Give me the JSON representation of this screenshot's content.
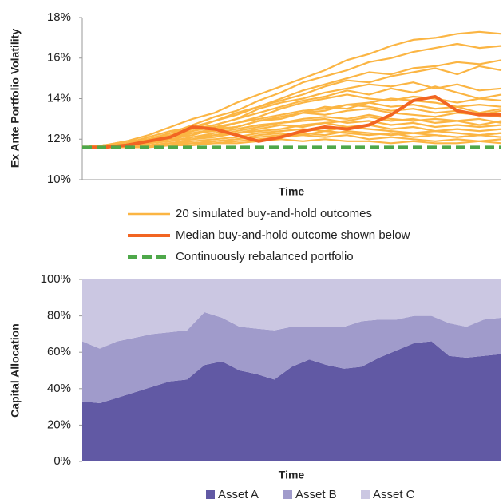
{
  "chart_data": [
    {
      "type": "line",
      "ylabel": "Ex Ante Portfolio Volatility",
      "xlabel": "Time",
      "ylim": [
        10,
        18
      ],
      "yticks": [
        {
          "value": 10,
          "label": "10%"
        },
        {
          "value": 12,
          "label": "12%"
        },
        {
          "value": 14,
          "label": "14%"
        },
        {
          "value": 16,
          "label": "16%"
        },
        {
          "value": 18,
          "label": "18%"
        }
      ],
      "series": [
        {
          "name": "20 simulated buy-and-hold outcomes",
          "color": "#fbb543",
          "values": [
            [
              11.6,
              11.7,
              11.9,
              12.2,
              12.6,
              13.0,
              13.3,
              13.8,
              14.2,
              14.6,
              15.0,
              15.4,
              15.9,
              16.2,
              16.6,
              16.9,
              17.0,
              17.2,
              17.3,
              17.2
            ],
            [
              11.6,
              11.7,
              11.8,
              12.0,
              12.3,
              12.7,
              13.1,
              13.4,
              13.9,
              14.3,
              14.8,
              15.1,
              15.4,
              15.8,
              16.0,
              16.3,
              16.5,
              16.7,
              16.5,
              16.6
            ],
            [
              11.6,
              11.6,
              11.8,
              12.1,
              12.4,
              12.6,
              12.9,
              13.3,
              13.6,
              14.0,
              14.4,
              14.7,
              15.0,
              15.3,
              15.2,
              15.5,
              15.6,
              15.8,
              15.7,
              15.9
            ],
            [
              11.6,
              11.7,
              11.9,
              12.0,
              12.3,
              12.5,
              12.9,
              13.2,
              13.6,
              13.9,
              14.2,
              14.6,
              14.9,
              14.8,
              15.1,
              15.3,
              15.5,
              15.2,
              15.6,
              15.4
            ],
            [
              11.6,
              11.6,
              11.7,
              11.9,
              12.2,
              12.4,
              12.7,
              13.0,
              13.5,
              13.8,
              14.0,
              14.3,
              14.5,
              14.7,
              14.6,
              14.8,
              14.5,
              14.7,
              14.4,
              14.5
            ],
            [
              11.6,
              11.7,
              11.8,
              12.0,
              12.1,
              12.4,
              12.6,
              12.8,
              13.1,
              13.5,
              13.8,
              14.0,
              14.2,
              14.0,
              13.9,
              14.1,
              14.0,
              13.8,
              14.0,
              13.9
            ],
            [
              11.6,
              11.6,
              11.7,
              11.8,
              12.0,
              12.2,
              12.5,
              12.8,
              13.0,
              13.2,
              13.4,
              13.5,
              13.7,
              13.6,
              13.4,
              13.5,
              13.3,
              13.4,
              13.2,
              13.4
            ],
            [
              11.6,
              11.7,
              11.8,
              11.9,
              12.1,
              12.3,
              12.4,
              12.6,
              12.9,
              13.1,
              13.3,
              13.2,
              13.4,
              13.5,
              13.3,
              13.2,
              13.1,
              13.3,
              13.2,
              13.1
            ],
            [
              11.6,
              11.6,
              11.7,
              11.8,
              11.9,
              12.1,
              12.3,
              12.5,
              12.7,
              12.8,
              13.0,
              13.1,
              13.0,
              13.2,
              13.0,
              12.9,
              13.0,
              12.9,
              13.0,
              12.8
            ],
            [
              11.6,
              11.7,
              11.7,
              11.9,
              12.0,
              12.0,
              12.2,
              12.4,
              12.6,
              12.8,
              12.9,
              13.0,
              12.8,
              12.9,
              12.7,
              12.8,
              12.6,
              12.7,
              12.6,
              12.7
            ],
            [
              11.6,
              11.6,
              11.7,
              11.7,
              11.8,
              12.0,
              12.1,
              12.3,
              12.4,
              12.5,
              12.7,
              12.8,
              12.6,
              12.7,
              12.5,
              12.6,
              12.4,
              12.5,
              12.4,
              12.5
            ],
            [
              11.6,
              11.6,
              11.6,
              11.7,
              11.8,
              11.9,
              12.0,
              12.1,
              12.3,
              12.4,
              12.5,
              12.4,
              12.6,
              12.5,
              12.4,
              12.3,
              12.4,
              12.3,
              12.2,
              12.3
            ],
            [
              11.6,
              11.6,
              11.7,
              11.7,
              11.8,
              11.8,
              11.9,
              12.0,
              12.2,
              12.3,
              12.2,
              12.4,
              12.3,
              12.2,
              12.3,
              12.1,
              12.2,
              12.1,
              12.2,
              12.1
            ],
            [
              11.6,
              11.6,
              11.6,
              11.7,
              11.7,
              11.8,
              11.8,
              11.9,
              12.0,
              12.1,
              12.2,
              12.1,
              12.2,
              12.0,
              12.1,
              12.0,
              11.9,
              12.0,
              11.9,
              12.0
            ],
            [
              11.6,
              11.6,
              11.6,
              11.6,
              11.7,
              11.7,
              11.8,
              11.8,
              11.9,
              12.0,
              11.9,
              12.0,
              11.9,
              11.9,
              11.8,
              11.9,
              11.8,
              11.8,
              11.9,
              11.8
            ],
            [
              11.6,
              11.7,
              11.8,
              12.0,
              12.2,
              12.5,
              12.7,
              13.0,
              13.3,
              13.6,
              13.9,
              14.1,
              14.4,
              14.2,
              14.5,
              14.3,
              14.6,
              14.3,
              14.0,
              14.2
            ],
            [
              11.6,
              11.6,
              11.7,
              11.9,
              12.1,
              12.2,
              12.5,
              12.6,
              12.9,
              13.0,
              13.3,
              13.6,
              13.5,
              13.8,
              13.6,
              13.7,
              13.5,
              13.6,
              13.3,
              13.5
            ],
            [
              11.6,
              11.6,
              11.7,
              11.8,
              11.9,
              12.1,
              12.2,
              12.3,
              12.5,
              12.7,
              12.6,
              12.8,
              12.9,
              13.1,
              12.9,
              13.0,
              12.8,
              12.9,
              12.7,
              12.9
            ],
            [
              11.6,
              11.6,
              11.6,
              11.7,
              11.8,
              11.8,
              11.9,
              12.0,
              12.1,
              12.2,
              12.3,
              12.2,
              12.4,
              12.3,
              12.2,
              12.3,
              12.2,
              12.1,
              12.2,
              12.3
            ],
            [
              11.6,
              11.7,
              11.8,
              11.9,
              12.1,
              12.3,
              12.5,
              12.6,
              12.9,
              13.1,
              13.3,
              13.4,
              13.7,
              13.8,
              14.0,
              13.9,
              13.8,
              13.6,
              13.7,
              13.6
            ]
          ]
        },
        {
          "name": "Median buy-and-hold outcome shown below",
          "color": "#f26522",
          "values": [
            11.6,
            11.6,
            11.7,
            11.9,
            12.1,
            12.6,
            12.5,
            12.2,
            11.9,
            12.1,
            12.4,
            12.6,
            12.5,
            12.7,
            13.2,
            13.9,
            14.1,
            13.4,
            13.2,
            13.2
          ]
        },
        {
          "name": "Continuously rebalanced portfolio",
          "color": "#4ea84a",
          "dashed": true,
          "values": [
            11.6,
            11.6
          ]
        }
      ]
    },
    {
      "type": "area",
      "stacked": true,
      "ylabel": "Capital Allocation",
      "xlabel": "Time",
      "ylim": [
        0,
        100
      ],
      "yticks": [
        {
          "value": 0,
          "label": "0%"
        },
        {
          "value": 20,
          "label": "20%"
        },
        {
          "value": 40,
          "label": "40%"
        },
        {
          "value": 60,
          "label": "60%"
        },
        {
          "value": 80,
          "label": "80%"
        },
        {
          "value": 100,
          "label": "100%"
        }
      ],
      "series": [
        {
          "name": "Asset A",
          "color": "#6159a4",
          "values": [
            33,
            32,
            35,
            38,
            41,
            44,
            45,
            53,
            55,
            50,
            48,
            45,
            52,
            56,
            53,
            51,
            52,
            57,
            61,
            65,
            66,
            58,
            57,
            58,
            59
          ]
        },
        {
          "name": "Asset B",
          "color": "#a09bcb",
          "values": [
            33,
            30,
            31,
            30,
            29,
            27,
            27,
            29,
            24,
            24,
            25,
            27,
            22,
            18,
            21,
            23,
            25,
            21,
            17,
            15,
            14,
            18,
            17,
            20,
            20
          ]
        },
        {
          "name": "Asset C",
          "color": "#cbc7e2",
          "values": [
            34,
            38,
            34,
            32,
            30,
            29,
            28,
            18,
            21,
            26,
            27,
            28,
            26,
            26,
            26,
            26,
            23,
            22,
            22,
            20,
            20,
            24,
            26,
            22,
            21
          ]
        }
      ]
    }
  ]
}
